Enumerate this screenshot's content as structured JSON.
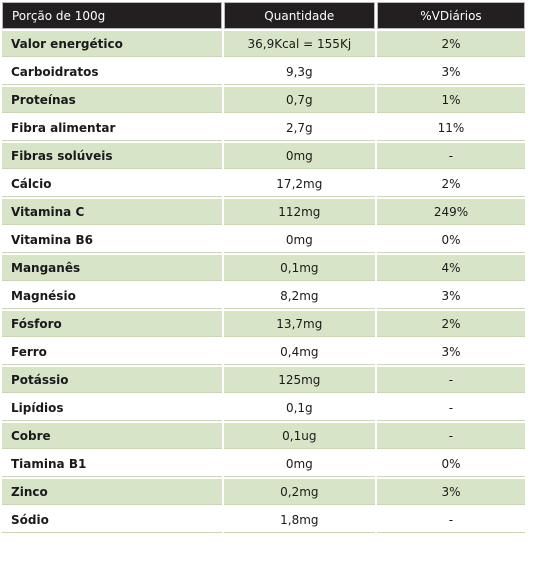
{
  "header": {
    "portion": "Porção de 100g",
    "quantity": "Quantidade",
    "daily_value": "%VDiários"
  },
  "rows": [
    {
      "name": "Valor energético",
      "qty": "36,9Kcal = 155Kj",
      "vd": "2%"
    },
    {
      "name": "Carboidratos",
      "qty": "9,3g",
      "vd": "3%"
    },
    {
      "name": "Proteínas",
      "qty": "0,7g",
      "vd": "1%"
    },
    {
      "name": "Fibra alimentar",
      "qty": "2,7g",
      "vd": "11%"
    },
    {
      "name": "Fibras solúveis",
      "qty": "0mg",
      "vd": "-"
    },
    {
      "name": "Cálcio",
      "qty": "17,2mg",
      "vd": "2%"
    },
    {
      "name": "Vitamina C",
      "qty": "112mg",
      "vd": "249%"
    },
    {
      "name": "Vitamina B6",
      "qty": "0mg",
      "vd": "0%"
    },
    {
      "name": "Manganês",
      "qty": "0,1mg",
      "vd": "4%"
    },
    {
      "name": "Magnésio",
      "qty": "8,2mg",
      "vd": "3%"
    },
    {
      "name": "Fósforo",
      "qty": "13,7mg",
      "vd": "2%"
    },
    {
      "name": "Ferro",
      "qty": "0,4mg",
      "vd": "3%"
    },
    {
      "name": "Potássio",
      "qty": "125mg",
      "vd": "-"
    },
    {
      "name": "Lipídios",
      "qty": "0,1g",
      "vd": "-"
    },
    {
      "name": "Cobre",
      "qty": "0,1ug",
      "vd": "-"
    },
    {
      "name": "Tiamina B1",
      "qty": "0mg",
      "vd": "0%"
    },
    {
      "name": "Zinco",
      "qty": "0,2mg",
      "vd": "3%"
    },
    {
      "name": "Sódio",
      "qty": "1,8mg",
      "vd": "-"
    }
  ],
  "colors": {
    "header_bg": "#231f20",
    "shaded_row": "#d8e4c8",
    "plain_row": "#ffffff"
  }
}
